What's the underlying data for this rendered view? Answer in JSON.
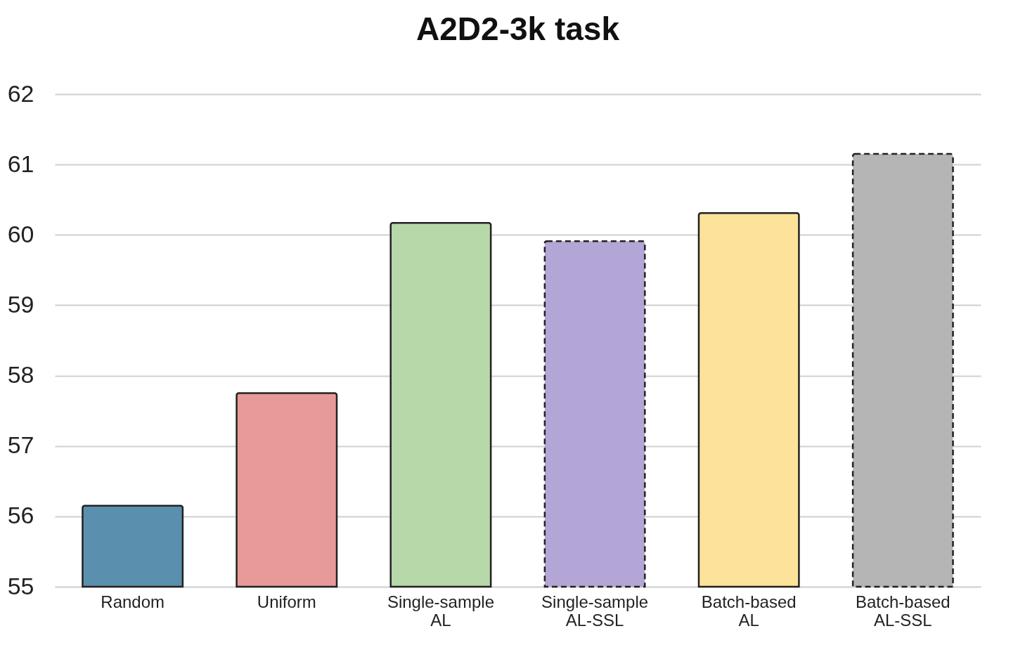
{
  "chart_data": {
    "type": "bar",
    "title": "A2D2-3k task",
    "categories": [
      "Random",
      "Uniform",
      "Single-sample AL",
      "Single-sample AL-SSL",
      "Batch-based AL",
      "Batch-based AL-SSL"
    ],
    "series": [
      {
        "values": [
          56.15,
          57.75,
          60.17,
          null,
          60.31,
          null
        ],
        "colors": [
          "#5b8fae",
          "#e89a98",
          "#b7d8a8",
          null,
          "#fde39a",
          null
        ],
        "line_style": "solid"
      },
      {
        "values": [
          null,
          null,
          null,
          59.91,
          null,
          61.15
        ],
        "colors": [
          null,
          null,
          null,
          "#b3a5d5",
          null,
          "#b5b5b5"
        ],
        "line_style": "dashed"
      }
    ],
    "ylim": [
      55,
      62
    ],
    "yticks": [
      55,
      56,
      57,
      58,
      59,
      60,
      61,
      62
    ],
    "grid": "y"
  }
}
